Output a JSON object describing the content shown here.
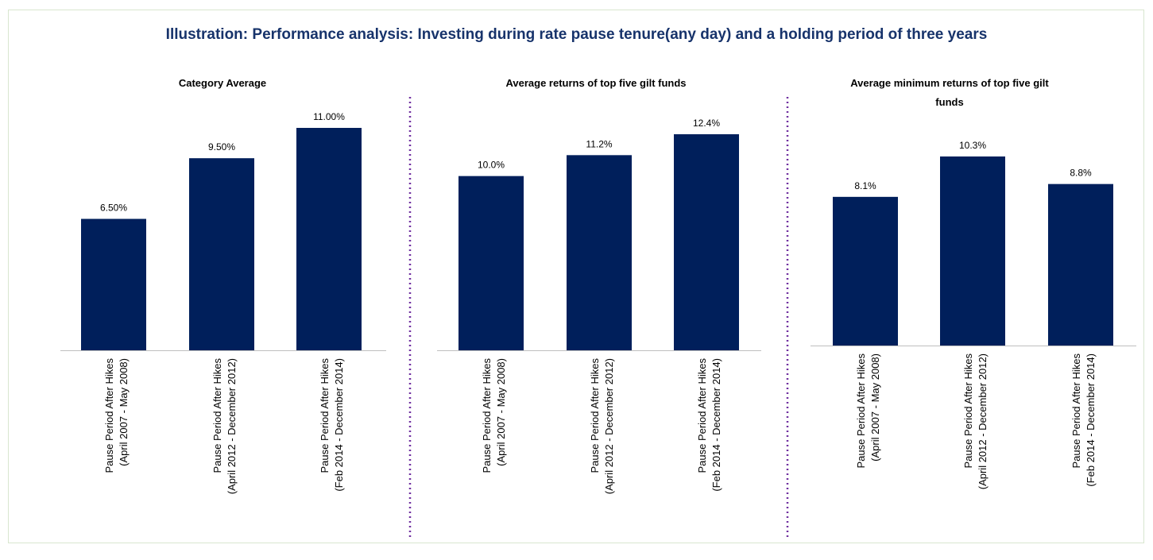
{
  "title": "Illustration: Performance analysis: Investing during rate pause tenure(any day) and a holding period of three years",
  "colors": {
    "bar": "#001f5b",
    "divider": "#7030a0",
    "axis": "#bfbfbf",
    "title": "#17336b"
  },
  "chart_data": [
    {
      "type": "bar",
      "title": "Category Average",
      "categories": [
        [
          "Pause Period After Hikes",
          "(April 2007 - May 2008)"
        ],
        [
          "Pause Period After Hikes",
          "(April 2012 - December 2012)"
        ],
        [
          "Pause Period After Hikes",
          "(Feb 2014 - December 2014)"
        ]
      ],
      "values": [
        6.5,
        9.5,
        11.0
      ],
      "data_labels": [
        "6.50%",
        "9.50%",
        "11.00%"
      ],
      "ylim": [
        0,
        11.0
      ]
    },
    {
      "type": "bar",
      "title": "Average returns of top five gilt funds",
      "categories": [
        [
          "Pause Period After Hikes",
          "(April 2007 - May 2008)"
        ],
        [
          "Pause Period After Hikes",
          "(April 2012 - December 2012)"
        ],
        [
          "Pause Period After Hikes",
          "(Feb 2014 - December 2014)"
        ]
      ],
      "values": [
        10.0,
        11.2,
        12.4
      ],
      "data_labels": [
        "10.0%",
        "11.2%",
        "12.4%"
      ],
      "ylim": [
        0,
        12.4
      ]
    },
    {
      "type": "bar",
      "title": "Average minimum returns of top five gilt funds",
      "categories": [
        [
          "Pause Period After Hikes",
          "(April 2007 - May 2008)"
        ],
        [
          "Pause Period After Hikes",
          "(April 2012 - December 2012)"
        ],
        [
          "Pause Period After Hikes",
          "(Feb 2014 - December 2014)"
        ]
      ],
      "values": [
        8.1,
        10.3,
        8.8
      ],
      "data_labels": [
        "8.1%",
        "10.3%",
        "8.8%"
      ],
      "ylim": [
        0,
        10.3
      ]
    }
  ]
}
